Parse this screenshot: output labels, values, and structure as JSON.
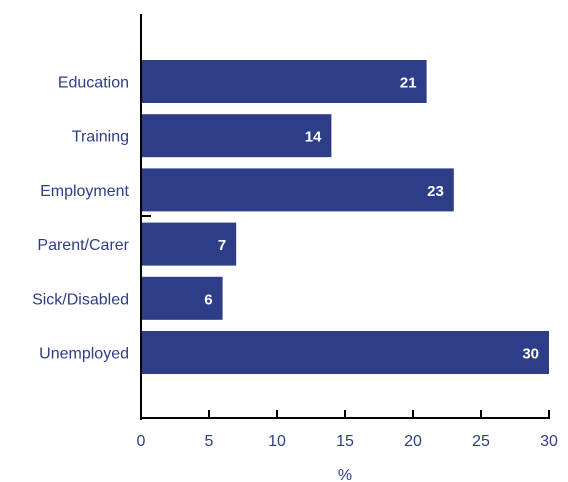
{
  "chart_data": {
    "type": "bar",
    "orientation": "horizontal",
    "categories": [
      "Education",
      "Training",
      "Employment",
      "Parent/Carer",
      "Sick/Disabled",
      "Unemployed"
    ],
    "values": [
      21,
      14,
      23,
      7,
      6,
      30
    ],
    "value_labels": [
      "21",
      "14",
      "23",
      "7",
      "6",
      "30"
    ],
    "x_ticks": [
      "0",
      "5",
      "10",
      "15",
      "20",
      "25",
      "30"
    ],
    "xlabel": "%",
    "xlim": [
      0,
      30
    ],
    "grid": false,
    "colors": {
      "bar": "#2e3d87",
      "text": "#2e3d87",
      "value_label": "#ffffff",
      "axis": "#000000"
    }
  }
}
